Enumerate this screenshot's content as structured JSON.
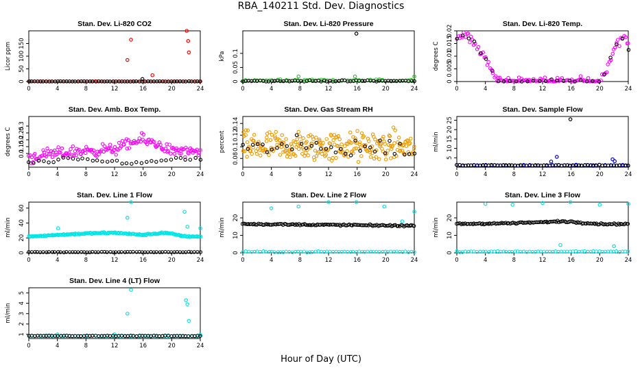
{
  "page": {
    "title": "RBA_140211  Std. Dev. Diagnostics",
    "xlabel": "Hour of Day (UTC)"
  },
  "chart_data": [
    {
      "type": "scatter",
      "title": "Stan. Dev. Li-820 CO2",
      "ylabel": "Licor ppm",
      "xlim": [
        0,
        24
      ],
      "ylim": [
        0,
        200
      ],
      "xticks": [
        0,
        4,
        8,
        12,
        16,
        20,
        24
      ],
      "yticks": [
        0,
        50,
        100,
        150
      ],
      "series": [
        {
          "color": "#ff0000",
          "baseline": 0.5,
          "noise": 0.5,
          "outliers": [
            [
              0.1,
              0.5
            ],
            [
              13.8,
              85
            ],
            [
              14.3,
              165
            ],
            [
              17.3,
              25
            ],
            [
              22.1,
              200
            ],
            [
              22.3,
              160
            ],
            [
              22.4,
              115
            ]
          ]
        },
        {
          "color": "#000000",
          "baseline": 0.5,
          "noise": 0.5,
          "outliers": [
            [
              15.9,
              10
            ]
          ]
        }
      ]
    },
    {
      "type": "scatter",
      "title": "Stan. Dev. Li-820 Pressure",
      "ylabel": "kPa",
      "xlim": [
        0,
        24
      ],
      "ylim": [
        0,
        0.18
      ],
      "xticks": [
        0,
        4,
        8,
        12,
        16,
        20,
        24
      ],
      "yticks": [
        0.0,
        0.05,
        0.1
      ],
      "series": [
        {
          "color": "#22cc22",
          "baseline": 0.004,
          "noise": 0.003,
          "outliers": [
            [
              7.8,
              0.018
            ],
            [
              15.7,
              0.018
            ],
            [
              24.0,
              0.018
            ]
          ]
        },
        {
          "color": "#000000",
          "baseline": 0.002,
          "noise": 0.002,
          "outliers": [
            [
              15.9,
              0.17
            ]
          ]
        }
      ]
    },
    {
      "type": "scatter",
      "title": "Stan. Dev. Li-820 Temp.",
      "ylabel": "degrees C",
      "xlim": [
        0,
        24
      ],
      "ylim": [
        0,
        0.02
      ],
      "xticks": [
        0,
        4,
        8,
        12,
        16,
        20,
        24
      ],
      "yticks": [
        0.0,
        0.005,
        0.01,
        0.015,
        0.02
      ],
      "series": [
        {
          "color": "#ff00ff",
          "curve": [
            [
              0,
              0.017
            ],
            [
              1.5,
              0.0185
            ],
            [
              3,
              0.013
            ],
            [
              4.5,
              0.007
            ],
            [
              5.3,
              0.002
            ],
            [
              5.6,
              0.0
            ],
            [
              20.0,
              0.0
            ],
            [
              20.8,
              0.004
            ],
            [
              22.2,
              0.014
            ],
            [
              23.4,
              0.018
            ],
            [
              24,
              0.015
            ]
          ],
          "noise": 0.0015,
          "density": 1
        },
        {
          "color": "#000000",
          "curve": [
            [
              0,
              0.017
            ],
            [
              1.5,
              0.018
            ],
            [
              3,
              0.013
            ],
            [
              4.5,
              0.007
            ],
            [
              5.3,
              0.002
            ],
            [
              5.6,
              0.0
            ],
            [
              20.0,
              0.0
            ],
            [
              20.8,
              0.004
            ],
            [
              22.2,
              0.014
            ],
            [
              23.4,
              0.018
            ],
            [
              24,
              0.013
            ]
          ],
          "noise": 0.0008,
          "density": 0.25
        }
      ]
    },
    {
      "type": "scatter",
      "title": "Stan. Dev. Amb. Box Temp.",
      "ylabel": "degrees C",
      "xlim": [
        0,
        24
      ],
      "ylim": [
        0,
        0.37
      ],
      "xticks": [
        0,
        4,
        8,
        12,
        16,
        20,
        24
      ],
      "yticks": [
        0.1,
        0.15,
        0.2,
        0.25,
        0.3
      ],
      "ytick_values": [
        0.05,
        0.1,
        0.15,
        0.2,
        0.25,
        0.3
      ],
      "series": [
        {
          "color": "#ff00ff",
          "curve": [
            [
              0,
              0.07
            ],
            [
              4,
              0.1
            ],
            [
              8,
              0.12
            ],
            [
              12,
              0.13
            ],
            [
              14,
              0.17
            ],
            [
              16,
              0.2
            ],
            [
              18,
              0.17
            ],
            [
              20,
              0.12
            ],
            [
              24,
              0.1
            ]
          ],
          "noise": 0.035,
          "density": 1.4
        },
        {
          "color": "#000000",
          "curve": [
            [
              0,
              0.03
            ],
            [
              6,
              0.06
            ],
            [
              12,
              0.04
            ],
            [
              16,
              0.03
            ],
            [
              20,
              0.06
            ],
            [
              24,
              0.06
            ]
          ],
          "noise": 0.012,
          "density": 0.3
        }
      ]
    },
    {
      "type": "scatter",
      "title": "Stan. Dev. Gas Stream RH",
      "ylabel": "percent",
      "xlim": [
        0,
        24
      ],
      "ylim": [
        0.065,
        0.152
      ],
      "xticks": [
        0,
        4,
        8,
        12,
        16,
        20,
        24
      ],
      "yticks": [
        0.08,
        0.1,
        0.12,
        0.14
      ],
      "series": [
        {
          "color": "#ee9900",
          "curve": [
            [
              0,
              0.1
            ],
            [
              24,
              0.1
            ]
          ],
          "noise": 0.022,
          "density": 2.2
        },
        {
          "color": "#000000",
          "curve": [
            [
              0,
              0.098
            ],
            [
              24,
              0.098
            ]
          ],
          "noise": 0.015,
          "density": 0.3
        }
      ]
    },
    {
      "type": "scatter",
      "title": "Stan. Dev. Sample Flow",
      "ylabel": "ml/min",
      "xlim": [
        0,
        24
      ],
      "ylim": [
        0,
        27
      ],
      "xticks": [
        0,
        4,
        8,
        12,
        16,
        20,
        24
      ],
      "yticks": [
        5,
        10,
        15,
        20,
        25
      ],
      "series": [
        {
          "color": "#0000cc",
          "baseline": 1.0,
          "noise": 0.25,
          "outliers": [
            [
              13.2,
              3
            ],
            [
              14.0,
              5.5
            ],
            [
              21.8,
              4.2
            ],
            [
              22.1,
              3.2
            ]
          ]
        },
        {
          "color": "#000000",
          "baseline": 1.0,
          "noise": 0.2,
          "outliers": [
            [
              15.9,
              25.5
            ]
          ]
        }
      ]
    },
    {
      "type": "scatter",
      "title": "Stan. Dev. Line 1 Flow",
      "ylabel": "ml/min",
      "xlim": [
        0,
        24
      ],
      "ylim": [
        0,
        68
      ],
      "xticks": [
        0,
        4,
        8,
        12,
        16,
        20,
        24
      ],
      "yticks": [
        0,
        20,
        40,
        60
      ],
      "series": [
        {
          "color": "#00e5e5",
          "curve": [
            [
              0,
              22
            ],
            [
              8,
              26
            ],
            [
              12,
              27
            ],
            [
              16,
              24
            ],
            [
              19,
              27
            ],
            [
              22,
              22
            ],
            [
              24,
              22
            ]
          ],
          "noise": 0.8,
          "density": 1.6,
          "outliers": [
            [
              4.1,
              33
            ],
            [
              13.8,
              47
            ],
            [
              14.3,
              68
            ],
            [
              21.8,
              55
            ],
            [
              22.2,
              35
            ],
            [
              24.0,
              33
            ]
          ]
        },
        {
          "color": "#000000",
          "baseline": 1.0,
          "noise": 0.3
        }
      ]
    },
    {
      "type": "scatter",
      "title": "Stan. Dev. Line 2 Flow",
      "ylabel": "ml/min",
      "xlim": [
        0,
        24
      ],
      "ylim": [
        0,
        29
      ],
      "xticks": [
        0,
        4,
        8,
        12,
        16,
        20,
        24
      ],
      "yticks": [
        0,
        10,
        20
      ],
      "series": [
        {
          "color": "#00e5e5",
          "baseline": 0.6,
          "noise": 0.2,
          "outliers": [
            [
              4.0,
              25.5
            ],
            [
              7.8,
              26.5
            ],
            [
              12.0,
              29
            ],
            [
              15.9,
              29
            ],
            [
              19.8,
              26.5
            ],
            [
              22.3,
              18
            ],
            [
              24.0,
              23.5
            ]
          ]
        },
        {
          "color": "#000000",
          "curve": [
            [
              0,
              16.5
            ],
            [
              24,
              15.5
            ]
          ],
          "noise": 0.4,
          "density": 1
        }
      ]
    },
    {
      "type": "scatter",
      "title": "Stan. Dev. Line 3 Flow",
      "ylabel": "ml/min",
      "xlim": [
        0,
        24
      ],
      "ylim": [
        0,
        29
      ],
      "xticks": [
        0,
        4,
        8,
        12,
        16,
        20,
        24
      ],
      "yticks": [
        0,
        10,
        20
      ],
      "series": [
        {
          "color": "#00e5e5",
          "baseline": 0.7,
          "noise": 0.2,
          "outliers": [
            [
              4.0,
              28
            ],
            [
              7.8,
              27.5
            ],
            [
              12.0,
              28.5
            ],
            [
              15.9,
              29
            ],
            [
              20.0,
              27.5
            ],
            [
              14.5,
              4.5
            ],
            [
              22.0,
              3.8
            ],
            [
              24.0,
              28
            ]
          ]
        },
        {
          "color": "#000000",
          "curve": [
            [
              0,
              16.5
            ],
            [
              8,
              17
            ],
            [
              15,
              18
            ],
            [
              20,
              16.5
            ],
            [
              24,
              16.5
            ]
          ],
          "noise": 0.4,
          "density": 1
        }
      ]
    },
    {
      "type": "scatter",
      "title": "Stan. Dev. Line 4 (LT) Flow",
      "ylabel": "ml/min",
      "xlim": [
        0,
        24
      ],
      "ylim": [
        0.6,
        5.5
      ],
      "xticks": [
        0,
        4,
        8,
        12,
        16,
        20,
        24
      ],
      "yticks": [
        1,
        2,
        3,
        4,
        5
      ],
      "series": [
        {
          "color": "#00e5e5",
          "baseline": 0.85,
          "noise": 0.05,
          "outliers": [
            [
              4.0,
              1.0
            ],
            [
              12.0,
              1.0
            ],
            [
              13.8,
              3.0
            ],
            [
              14.3,
              5.3
            ],
            [
              22.0,
              4.3
            ],
            [
              22.2,
              3.9
            ],
            [
              22.4,
              2.3
            ],
            [
              24.0,
              0.95
            ]
          ]
        },
        {
          "color": "#000000",
          "baseline": 0.85,
          "noise": 0.03
        }
      ]
    }
  ]
}
